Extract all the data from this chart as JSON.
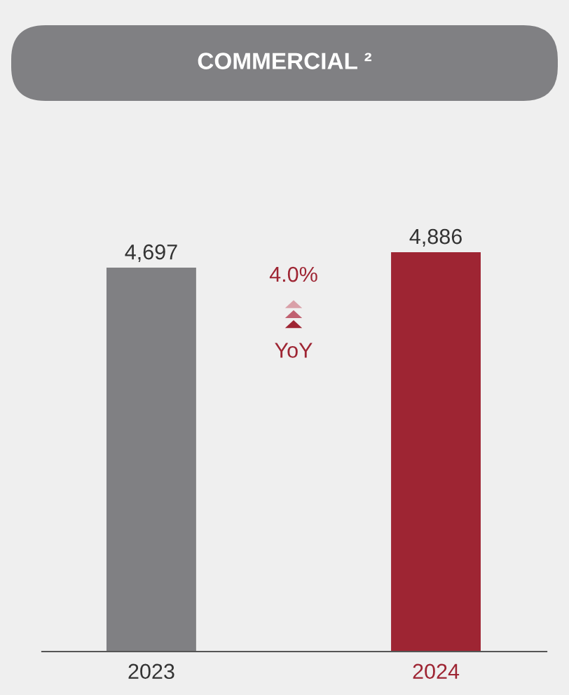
{
  "chart_data": {
    "type": "bar",
    "title": "COMMERCIAL ²",
    "categories": [
      "2023",
      "2024"
    ],
    "values": [
      4697,
      4886
    ],
    "colors": [
      "#808083",
      "#9e2533"
    ],
    "value_labels": [
      "4,697",
      "4,886"
    ],
    "grid": false,
    "legend": false,
    "annotations": [
      "4.0%",
      "YoY"
    ]
  }
}
